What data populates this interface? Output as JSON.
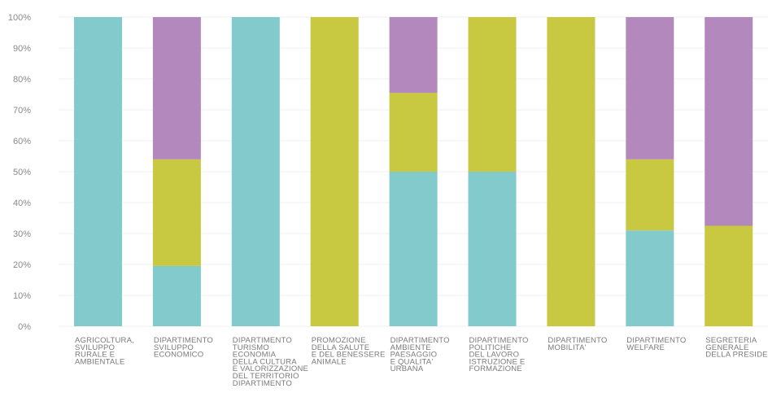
{
  "chart_data": {
    "type": "bar",
    "stacked": true,
    "percent": true,
    "ylim": [
      0,
      100
    ],
    "ytick_labels": [
      "0%",
      "10%",
      "20%",
      "30%",
      "40%",
      "50%",
      "60%",
      "70%",
      "80%",
      "90%",
      "100%"
    ],
    "grid": true,
    "legend": "none",
    "categories": [
      [
        "AGRICOLTURA,",
        "SVILUPPO",
        "RURALE E",
        "AMBIENTALE"
      ],
      [
        "DIPARTIMENTO",
        "SVILUPPO",
        "ECONOMICO"
      ],
      [
        "DIPARTIMENTO",
        "TURISMO",
        "ECONOMIA",
        "DELLA CULTURA",
        "E VALORIZZAZIONE",
        "DEL TERRITORIO",
        "DIPARTIMENTO"
      ],
      [
        "PROMOZIONE",
        "DELLA SALUTE",
        "E DEL BENESSERE",
        "ANIMALE"
      ],
      [
        "DIPARTIMENTO",
        "AMBIENTE",
        "PAESAGGIO",
        "E QUALITA'",
        "URBANA"
      ],
      [
        "DIPARTIMENTO",
        "POLITICHE",
        "DEL LAVORO",
        "ISTRUZIONE E",
        "FORMAZIONE"
      ],
      [
        "DIPARTIMENTO",
        "MOBILITA'"
      ],
      [
        "DIPARTIMENTO",
        "WELFARE"
      ],
      [
        "SEGRETERIA",
        "GENERALE",
        "DELLA PRESIDENZA"
      ]
    ],
    "series": [
      {
        "color": "#82cacc",
        "values": [
          100,
          19.5,
          100,
          0,
          50,
          50,
          0,
          31,
          0
        ]
      },
      {
        "color": "#c8c941",
        "values": [
          0,
          34.5,
          0,
          100,
          25.5,
          50,
          100,
          23,
          32.5
        ]
      },
      {
        "color": "#b388bd",
        "values": [
          0,
          46,
          0,
          0,
          24.5,
          0,
          0,
          46,
          67.5
        ]
      }
    ]
  }
}
